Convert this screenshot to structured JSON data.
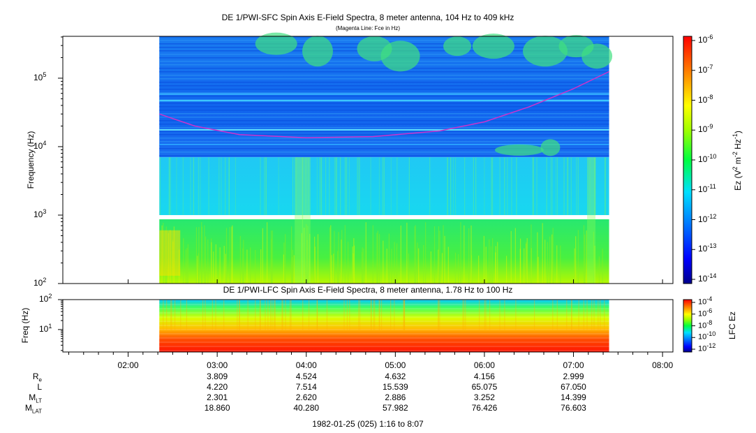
{
  "chart_data": [
    {
      "type": "heatmap",
      "title": "DE 1/PWI-SFC  Spin Axis E-Field Spectra, 8 meter antenna, 104 Hz to 409 kHz",
      "subtitle": "(Magenta Line: Fce in Hz)",
      "ylabel": "Frequency (Hz)",
      "yscale": "log",
      "ylim": [
        100,
        409000
      ],
      "yticks": [
        {
          "base": "10",
          "exp": "2",
          "value": 100
        },
        {
          "base": "10",
          "exp": "3",
          "value": 1000
        },
        {
          "base": "10",
          "exp": "4",
          "value": 10000
        },
        {
          "base": "10",
          "exp": "5",
          "value": 100000
        }
      ],
      "xlim": [
        "01:16",
        "08:07"
      ],
      "data_start": "02:21",
      "data_end": "07:24",
      "colorbar": {
        "label": "Ez (V2 m-2 Hz-1)",
        "label_parts": {
          "a": "Ez (V",
          "b": "2",
          "c": " m",
          "d": "-2",
          "e": " Hz",
          "f": "-1",
          "g": ")"
        },
        "ticks": [
          {
            "base": "10",
            "exp": "-6"
          },
          {
            "base": "10",
            "exp": "-7"
          },
          {
            "base": "10",
            "exp": "-8"
          },
          {
            "base": "10",
            "exp": "-9"
          },
          {
            "base": "10",
            "exp": "-10"
          },
          {
            "base": "10",
            "exp": "-11"
          },
          {
            "base": "10",
            "exp": "-12"
          },
          {
            "base": "10",
            "exp": "-13"
          },
          {
            "base": "10",
            "exp": "-14"
          }
        ],
        "range": [
          1e-14,
          1e-06
        ]
      },
      "overlay_line": {
        "name": "Fce",
        "color": "#cc33cc",
        "points": [
          {
            "time": "02:21",
            "freq": 30000
          },
          {
            "time": "02:45",
            "freq": 20000
          },
          {
            "time": "03:15",
            "freq": 15000
          },
          {
            "time": "04:00",
            "freq": 13500
          },
          {
            "time": "04:45",
            "freq": 14000
          },
          {
            "time": "05:30",
            "freq": 17000
          },
          {
            "time": "06:00",
            "freq": 23000
          },
          {
            "time": "06:30",
            "freq": 38000
          },
          {
            "time": "07:00",
            "freq": 70000
          },
          {
            "time": "07:24",
            "freq": 125000
          }
        ]
      }
    },
    {
      "type": "heatmap",
      "title": "DE 1/PWI-LFC  Spin Axis E-Field Spectra, 8 meter antenna, 1.78 Hz to 100 Hz",
      "ylabel": "Freq (Hz)",
      "yscale": "log",
      "ylim": [
        1.78,
        100
      ],
      "yticks": [
        {
          "base": "10",
          "exp": "1",
          "value": 10
        },
        {
          "base": "10",
          "exp": "2",
          "value": 100
        }
      ],
      "colorbar": {
        "label": "LFC Ez",
        "ticks": [
          {
            "base": "10",
            "exp": "-4"
          },
          {
            "base": "10",
            "exp": "-6"
          },
          {
            "base": "10",
            "exp": "-8"
          },
          {
            "base": "10",
            "exp": "-10"
          },
          {
            "base": "10",
            "exp": "-12"
          }
        ],
        "range": [
          1e-12,
          0.0001
        ]
      }
    }
  ],
  "x_axis": {
    "ticks": [
      "02:00",
      "03:00",
      "04:00",
      "05:00",
      "06:00",
      "07:00",
      "08:00"
    ],
    "caption": "1982-01-25 (025) 1:16 to 8:07"
  },
  "ephemeris": [
    {
      "label": "R",
      "sub": "e",
      "values": [
        "3.809",
        "4.524",
        "4.632",
        "4.156",
        "2.999"
      ]
    },
    {
      "label": "L",
      "sub": "",
      "values": [
        "4.220",
        "7.514",
        "15.539",
        "65.075",
        "67.050"
      ]
    },
    {
      "label": "M",
      "sub": "LT",
      "values": [
        "2.301",
        "2.620",
        "2.886",
        "3.252",
        "14.399"
      ]
    },
    {
      "label": "M",
      "sub": "LAT",
      "values": [
        "18.860",
        "40.280",
        "57.982",
        "76.426",
        "76.603"
      ]
    }
  ]
}
